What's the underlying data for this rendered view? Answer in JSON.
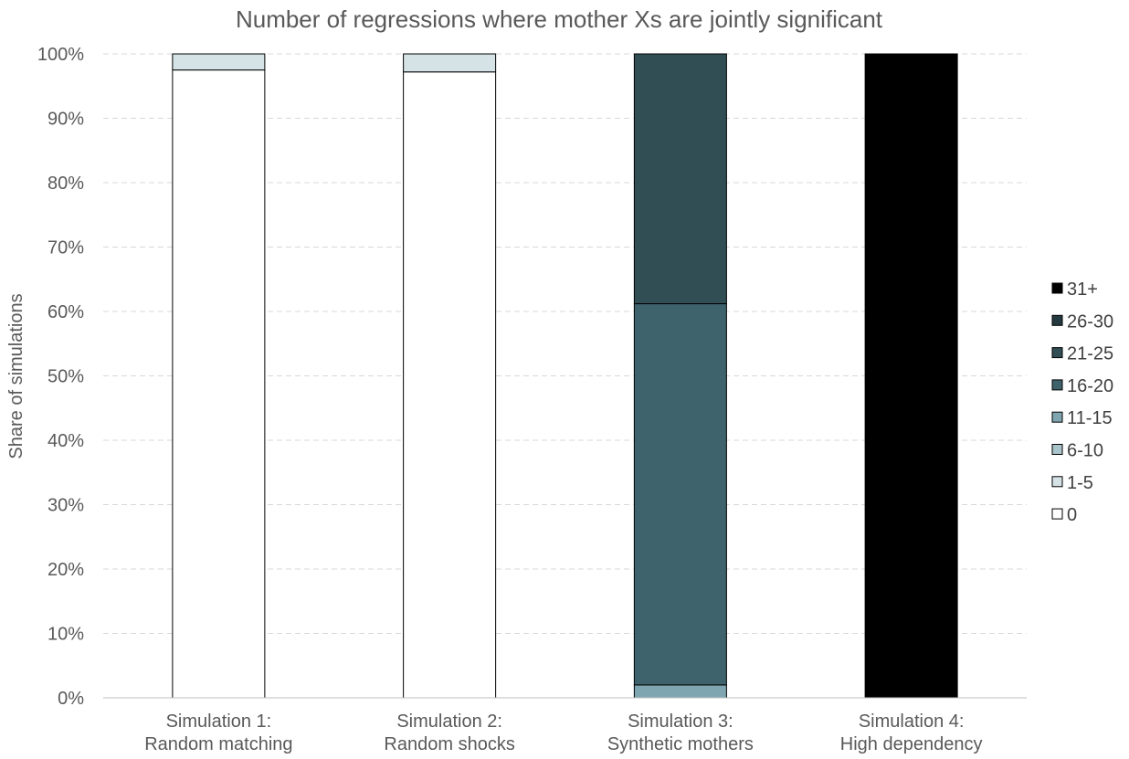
{
  "chart_data": {
    "type": "bar",
    "stacked": true,
    "title": "Number of regressions where mother Xs are jointly significant",
    "xlabel": "",
    "ylabel": "Share of simulations",
    "ylim": [
      0,
      100
    ],
    "y_ticks": [
      "0%",
      "10%",
      "20%",
      "30%",
      "40%",
      "50%",
      "60%",
      "70%",
      "80%",
      "90%",
      "100%"
    ],
    "grid": true,
    "legend_position": "right",
    "categories": [
      [
        "Simulation 1:",
        "Random matching"
      ],
      [
        "Simulation 2:",
        "Random shocks"
      ],
      [
        "Simulation 3:",
        "Synthetic mothers"
      ],
      [
        "Simulation 4:",
        "High dependency"
      ]
    ],
    "series": [
      {
        "name": "0",
        "color": "#ffffff",
        "values": [
          97.5,
          97.2,
          0,
          0
        ]
      },
      {
        "name": "1-5",
        "color": "#d6e3e6",
        "values": [
          2.5,
          2.8,
          0,
          0
        ]
      },
      {
        "name": "6-10",
        "color": "#a9c4ca",
        "values": [
          0,
          0,
          0,
          0
        ]
      },
      {
        "name": "11-15",
        "color": "#7fa6b0",
        "values": [
          0,
          0,
          2,
          0
        ]
      },
      {
        "name": "16-20",
        "color": "#3f636c",
        "values": [
          0,
          0,
          59.2,
          0
        ]
      },
      {
        "name": "21-25",
        "color": "#324e55",
        "values": [
          0,
          0,
          38.8,
          0
        ]
      },
      {
        "name": "26-30",
        "color": "#253a40",
        "values": [
          0,
          0,
          0,
          0
        ]
      },
      {
        "name": "31+",
        "color": "#000000",
        "values": [
          0,
          0,
          0,
          100
        ]
      }
    ]
  }
}
